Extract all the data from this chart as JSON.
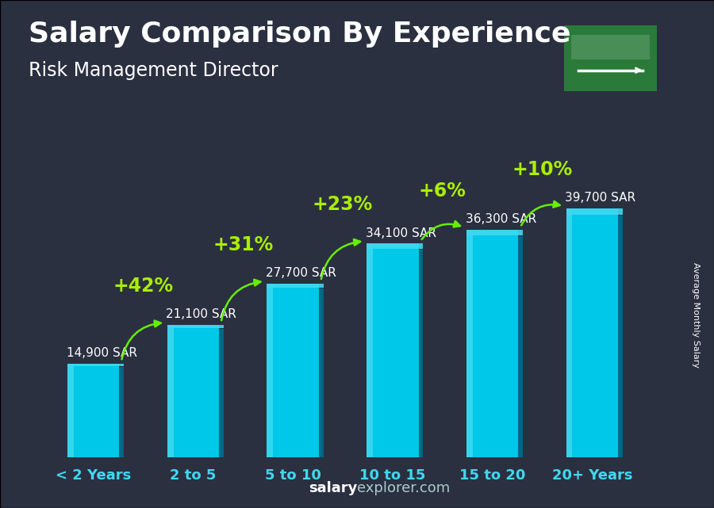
{
  "title": "Salary Comparison By Experience",
  "subtitle": "Risk Management Director",
  "categories": [
    "< 2 Years",
    "2 to 5",
    "5 to 10",
    "10 to 15",
    "15 to 20",
    "20+ Years"
  ],
  "values": [
    14900,
    21100,
    27700,
    34100,
    36300,
    39700
  ],
  "bar_color_main": "#00C8E8",
  "bar_color_light": "#40D8F0",
  "bar_color_dark": "#0088AA",
  "bar_color_side": "#006688",
  "labels": [
    "14,900 SAR",
    "21,100 SAR",
    "27,700 SAR",
    "34,100 SAR",
    "36,300 SAR",
    "39,700 SAR"
  ],
  "pct_labels": [
    "+42%",
    "+31%",
    "+23%",
    "+6%",
    "+10%"
  ],
  "pct_color": "#AAEE00",
  "arrow_color": "#66EE00",
  "bg_color": "#2a3040",
  "text_color_white": "#ffffff",
  "text_color_cyan": "#40D8F0",
  "ylabel": "Average Monthly Salary",
  "footer_bold": "salary",
  "footer_rest": "explorer.com",
  "title_fontsize": 26,
  "subtitle_fontsize": 17,
  "label_fontsize": 11,
  "pct_fontsize": 17,
  "xtick_fontsize": 13,
  "ylabel_fontsize": 8,
  "footer_fontsize": 13,
  "ylim_max": 47000,
  "bar_width": 0.52,
  "flag_color": "#2a7a3a"
}
